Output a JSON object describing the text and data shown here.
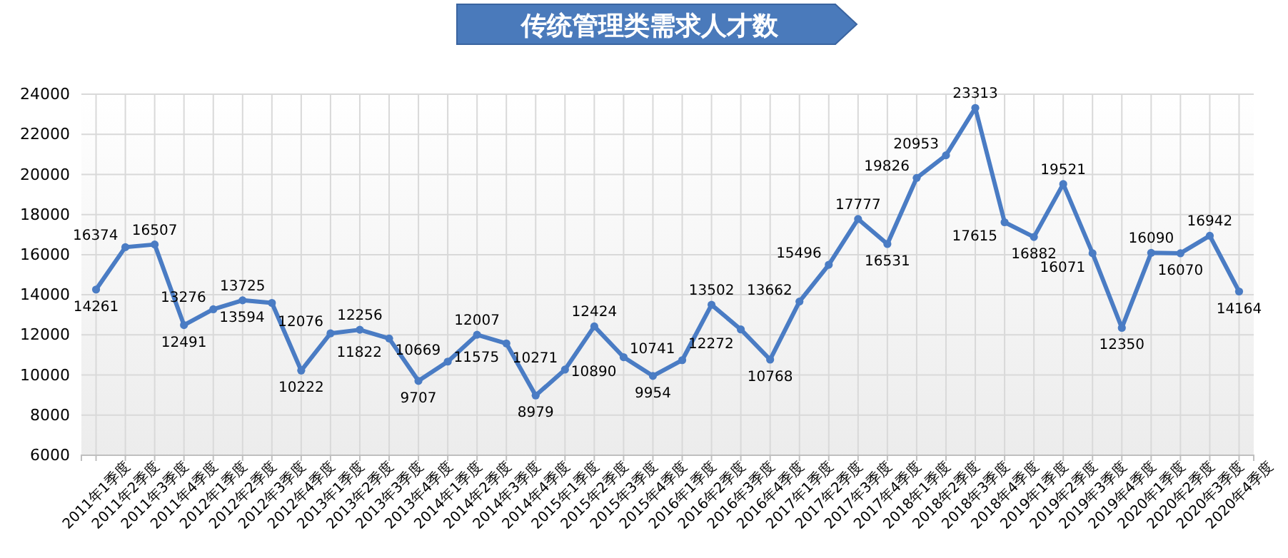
{
  "chart_data": {
    "type": "line",
    "title": "传统管理类需求人才数",
    "categories": [
      "2011年1季度",
      "2011年2季度",
      "2011年3季度",
      "2011年4季度",
      "2012年1季度",
      "2012年2季度",
      "2012年3季度",
      "2012年4季度",
      "2013年1季度",
      "2013年2季度",
      "2013年3季度",
      "2013年4季度",
      "2014年1季度",
      "2014年2季度",
      "2014年3季度",
      "2014年4季度",
      "2015年1季度",
      "2015年2季度",
      "2015年3季度",
      "2015年4季度",
      "2016年1季度",
      "2016年2季度",
      "2016年3季度",
      "2016年4季度",
      "2017年1季度",
      "2017年2季度",
      "2017年3季度",
      "2017年4季度",
      "2018年1季度",
      "2018年2季度",
      "2018年3季度",
      "2018年4季度",
      "2019年1季度",
      "2019年2季度",
      "2019年3季度",
      "2019年4季度",
      "2020年1季度",
      "2020年2季度",
      "2020年3季度",
      "2020年4季度"
    ],
    "series": [
      {
        "color": "#4a7cc4",
        "values": [
          14261,
          16374,
          16507,
          12491,
          13276,
          13725,
          13594,
          10222,
          12076,
          12256,
          11822,
          9707,
          10669,
          12007,
          11575,
          8979,
          10271,
          12424,
          10890,
          9954,
          10741,
          13502,
          12272,
          10768,
          13662,
          15496,
          17777,
          16531,
          19826,
          20953,
          23313,
          17615,
          16882,
          19521,
          16071,
          12350,
          16090,
          16070,
          16942,
          14164
        ]
      }
    ],
    "ylim": [
      6000,
      24000
    ],
    "yticks": [
      6000,
      8000,
      10000,
      12000,
      14000,
      16000,
      18000,
      20000,
      22000,
      24000
    ],
    "grid": true,
    "marker": "circle",
    "line_style": "solid",
    "data_labels": true
  }
}
